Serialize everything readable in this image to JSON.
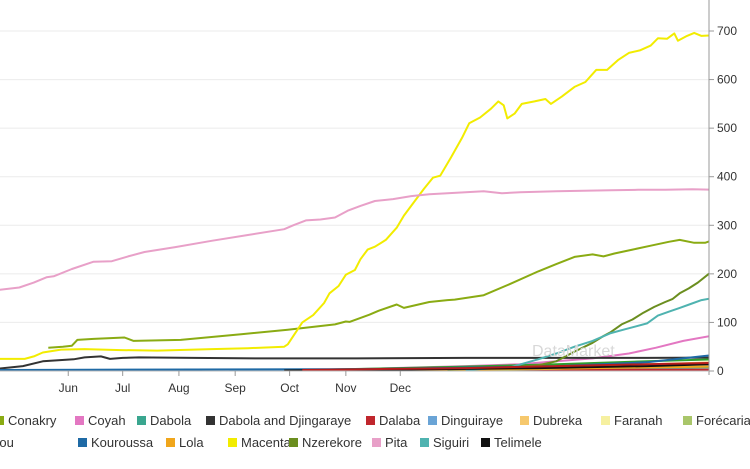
{
  "chart_data": {
    "type": "line",
    "title": "",
    "xlabel": "",
    "ylabel": "",
    "x_ticks": [
      "Jun",
      "Jul",
      "Aug",
      "Sep",
      "Oct",
      "Nov",
      "Dec"
    ],
    "y_ticks": [
      "0",
      "100",
      "200",
      "300",
      "400",
      "500",
      "600",
      "700"
    ],
    "ylim": [
      0,
      750
    ],
    "y_axis_side": "right",
    "grid": "horizontal",
    "legend_position": "bottom",
    "watermark": "DataMarket",
    "x_unit": "2014-05-day",
    "series": [
      {
        "name": "Conakry",
        "color": "#8aab13",
        "points": [
          [
            20,
            48
          ],
          [
            28,
            50
          ],
          [
            33,
            52
          ],
          [
            36,
            64
          ],
          [
            45,
            66
          ],
          [
            62,
            69
          ],
          [
            67,
            62
          ],
          [
            93,
            64
          ],
          [
            127,
            76
          ],
          [
            152,
            85
          ],
          [
            178,
            96
          ],
          [
            184,
            102
          ],
          [
            186,
            101
          ],
          [
            197,
            116
          ],
          [
            202,
            124
          ],
          [
            212,
            137
          ],
          [
            216,
            130
          ],
          [
            230,
            142
          ],
          [
            240,
            146
          ],
          [
            244,
            147
          ],
          [
            260,
            156
          ],
          [
            275,
            180
          ],
          [
            290,
            205
          ],
          [
            300,
            220
          ],
          [
            310,
            235
          ],
          [
            320,
            240
          ],
          [
            326,
            236
          ],
          [
            332,
            242
          ],
          [
            342,
            250
          ],
          [
            352,
            258
          ],
          [
            362,
            266
          ],
          [
            368,
            270
          ],
          [
            376,
            264
          ],
          [
            382,
            264
          ],
          [
            390,
            274
          ],
          [
            396,
            278
          ],
          [
            402,
            290
          ],
          [
            404,
            293
          ]
        ]
      },
      {
        "name": "Coyah",
        "color": "#e377c2",
        "points": [
          [
            160,
            2
          ],
          [
            190,
            4
          ],
          [
            220,
            7
          ],
          [
            250,
            10
          ],
          [
            280,
            14
          ],
          [
            300,
            20
          ],
          [
            320,
            26
          ],
          [
            340,
            36
          ],
          [
            355,
            48
          ],
          [
            370,
            62
          ],
          [
            385,
            72
          ],
          [
            395,
            86
          ],
          [
            404,
            100
          ]
        ]
      },
      {
        "name": "Dabola",
        "color": "#3aa68f",
        "points": [
          [
            120,
            1
          ],
          [
            200,
            3
          ],
          [
            260,
            5
          ],
          [
            320,
            6
          ],
          [
            404,
            8
          ]
        ]
      },
      {
        "name": "Dabola and Djingaraye",
        "color": "#333333",
        "points": [
          [
            -10,
            4
          ],
          [
            6,
            10
          ],
          [
            17,
            20
          ],
          [
            34,
            24
          ],
          [
            40,
            28
          ],
          [
            49,
            30
          ],
          [
            54,
            25
          ],
          [
            61,
            27
          ],
          [
            70,
            28
          ],
          [
            100,
            27
          ],
          [
            140,
            26
          ],
          [
            190,
            26
          ],
          [
            250,
            27
          ],
          [
            300,
            27
          ],
          [
            350,
            27
          ],
          [
            404,
            28
          ]
        ]
      },
      {
        "name": "Dalaba",
        "color": "#c0262d",
        "points": [
          [
            160,
            1
          ],
          [
            200,
            1
          ],
          [
            230,
            2
          ],
          [
            280,
            2
          ],
          [
            404,
            3
          ]
        ]
      },
      {
        "name": "Dinguiraye",
        "color": "#6aa4d6",
        "points": [
          [
            120,
            1
          ],
          [
            200,
            4
          ],
          [
            260,
            7
          ],
          [
            320,
            10
          ],
          [
            404,
            14
          ]
        ]
      },
      {
        "name": "Dubreka",
        "color": "#f6c86d",
        "points": [
          [
            150,
            1
          ],
          [
            190,
            3
          ],
          [
            230,
            5
          ],
          [
            280,
            8
          ],
          [
            330,
            12
          ],
          [
            370,
            16
          ],
          [
            404,
            20
          ]
        ]
      },
      {
        "name": "Faranah",
        "color": "#f6f0a0",
        "points": [
          [
            180,
            1
          ],
          [
            230,
            3
          ],
          [
            280,
            6
          ],
          [
            404,
            10
          ]
        ]
      },
      {
        "name": "Forécariah",
        "color": "#a9c66a",
        "points": [
          [
            230,
            1
          ],
          [
            290,
            4
          ],
          [
            340,
            8
          ],
          [
            404,
            18
          ]
        ]
      },
      {
        "name": "Kissidougou",
        "color": "#2ca02c",
        "points": [
          [
            160,
            2
          ],
          [
            200,
            5
          ],
          [
            250,
            9
          ],
          [
            300,
            14
          ],
          [
            350,
            20
          ],
          [
            404,
            26
          ]
        ]
      },
      {
        "name": "Kouroussa",
        "color": "#1f6aa5",
        "points": [
          [
            -10,
            2
          ],
          [
            100,
            3
          ],
          [
            200,
            4
          ],
          [
            300,
            10
          ],
          [
            350,
            18
          ],
          [
            404,
            40
          ]
        ]
      },
      {
        "name": "Lola",
        "color": "#f0a61b",
        "points": [
          [
            200,
            1
          ],
          [
            260,
            3
          ],
          [
            320,
            6
          ],
          [
            404,
            10
          ]
        ]
      },
      {
        "name": "Macenta",
        "color": "#f2ec00",
        "points": [
          [
            -10,
            25
          ],
          [
            7,
            25
          ],
          [
            12,
            30
          ],
          [
            17,
            38
          ],
          [
            27,
            44
          ],
          [
            40,
            45
          ],
          [
            60,
            43
          ],
          [
            80,
            42
          ],
          [
            110,
            45
          ],
          [
            130,
            47
          ],
          [
            150,
            50
          ],
          [
            152,
            55
          ],
          [
            160,
            100
          ],
          [
            166,
            115
          ],
          [
            172,
            140
          ],
          [
            175,
            160
          ],
          [
            180,
            175
          ],
          [
            184,
            198
          ],
          [
            189,
            208
          ],
          [
            192,
            230
          ],
          [
            196,
            250
          ],
          [
            200,
            256
          ],
          [
            206,
            270
          ],
          [
            212,
            295
          ],
          [
            216,
            320
          ],
          [
            222,
            350
          ],
          [
            227,
            375
          ],
          [
            232,
            398
          ],
          [
            236,
            402
          ],
          [
            242,
            440
          ],
          [
            248,
            480
          ],
          [
            252,
            510
          ],
          [
            258,
            522
          ],
          [
            264,
            540
          ],
          [
            268,
            555
          ],
          [
            271,
            547
          ],
          [
            273,
            520
          ],
          [
            277,
            530
          ],
          [
            281,
            550
          ],
          [
            288,
            555
          ],
          [
            294,
            560
          ],
          [
            297,
            550
          ],
          [
            303,
            565
          ],
          [
            310,
            585
          ],
          [
            316,
            595
          ],
          [
            322,
            620
          ],
          [
            328,
            620
          ],
          [
            334,
            640
          ],
          [
            340,
            655
          ],
          [
            346,
            660
          ],
          [
            352,
            670
          ],
          [
            356,
            685
          ],
          [
            361,
            684
          ],
          [
            365,
            695
          ],
          [
            367,
            680
          ],
          [
            372,
            690
          ],
          [
            376,
            696
          ],
          [
            380,
            690
          ],
          [
            390,
            692
          ],
          [
            404,
            690
          ]
        ]
      },
      {
        "name": "Nzerekore",
        "color": "#6b8e1f",
        "points": [
          [
            240,
            3
          ],
          [
            270,
            6
          ],
          [
            290,
            12
          ],
          [
            300,
            20
          ],
          [
            310,
            40
          ],
          [
            320,
            58
          ],
          [
            326,
            72
          ],
          [
            330,
            80
          ],
          [
            336,
            96
          ],
          [
            342,
            106
          ],
          [
            348,
            120
          ],
          [
            354,
            132
          ],
          [
            360,
            142
          ],
          [
            364,
            148
          ],
          [
            368,
            160
          ],
          [
            373,
            170
          ],
          [
            378,
            182
          ],
          [
            384,
            200
          ],
          [
            390,
            213
          ],
          [
            394,
            222
          ],
          [
            396,
            228
          ],
          [
            400,
            224
          ],
          [
            404,
            224
          ]
        ]
      },
      {
        "name": "Pita",
        "color": "#e8a0c8",
        "points": [
          [
            -10,
            166
          ],
          [
            4,
            172
          ],
          [
            12,
            182
          ],
          [
            19,
            193
          ],
          [
            23,
            195
          ],
          [
            33,
            210
          ],
          [
            45,
            225
          ],
          [
            55,
            226
          ],
          [
            64,
            236
          ],
          [
            73,
            245
          ],
          [
            90,
            255
          ],
          [
            110,
            268
          ],
          [
            130,
            280
          ],
          [
            150,
            292
          ],
          [
            155,
            300
          ],
          [
            162,
            310
          ],
          [
            170,
            312
          ],
          [
            178,
            316
          ],
          [
            185,
            330
          ],
          [
            192,
            340
          ],
          [
            200,
            350
          ],
          [
            210,
            354
          ],
          [
            220,
            360
          ],
          [
            230,
            364
          ],
          [
            240,
            366
          ],
          [
            250,
            368
          ],
          [
            260,
            370
          ],
          [
            270,
            366
          ],
          [
            280,
            368
          ],
          [
            290,
            369
          ],
          [
            300,
            370
          ],
          [
            315,
            371
          ],
          [
            330,
            372
          ],
          [
            345,
            373
          ],
          [
            360,
            373
          ],
          [
            375,
            374
          ],
          [
            390,
            373
          ],
          [
            404,
            373
          ]
        ]
      },
      {
        "name": "Siguiri",
        "color": "#4fb3b0",
        "points": [
          [
            250,
            2
          ],
          [
            275,
            8
          ],
          [
            290,
            24
          ],
          [
            300,
            36
          ],
          [
            310,
            50
          ],
          [
            320,
            62
          ],
          [
            330,
            78
          ],
          [
            338,
            86
          ],
          [
            344,
            92
          ],
          [
            350,
            98
          ],
          [
            356,
            114
          ],
          [
            362,
            122
          ],
          [
            368,
            130
          ],
          [
            374,
            138
          ],
          [
            380,
            146
          ],
          [
            386,
            150
          ],
          [
            390,
            146
          ],
          [
            398,
            142
          ],
          [
            404,
            142
          ]
        ]
      },
      {
        "name": "Telimele",
        "color": "#111111",
        "points": [
          [
            150,
            1
          ],
          [
            220,
            3
          ],
          [
            290,
            6
          ],
          [
            350,
            10
          ],
          [
            404,
            16
          ]
        ]
      },
      {
        "name": "Yomou",
        "color": "#b71c1c",
        "points": [
          [
            160,
            2
          ],
          [
            200,
            4
          ],
          [
            250,
            6
          ],
          [
            300,
            10
          ],
          [
            350,
            14
          ],
          [
            404,
            18
          ]
        ]
      }
    ]
  }
}
